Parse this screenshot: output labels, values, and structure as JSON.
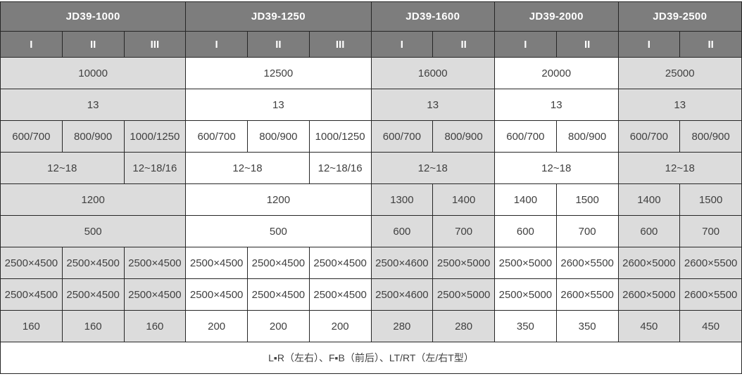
{
  "colors": {
    "header_bg": "#7d7d7d",
    "header_text": "#ffffff",
    "gray_cell": "#dcdcdc",
    "white_cell": "#ffffff",
    "border": "#262626",
    "body_text": "#404040"
  },
  "table": {
    "column_count": 12,
    "groups": [
      {
        "label": "JD39-1000",
        "cols": 3,
        "shade": "gray"
      },
      {
        "label": "JD39-1250",
        "cols": 3,
        "shade": "white"
      },
      {
        "label": "JD39-1600",
        "cols": 2,
        "shade": "gray"
      },
      {
        "label": "JD39-2000",
        "cols": 2,
        "shade": "white"
      },
      {
        "label": "JD39-2500",
        "cols": 2,
        "shade": "gray"
      }
    ],
    "subheaders": [
      "I",
      "II",
      "III",
      "I",
      "II",
      "III",
      "I",
      "II",
      "I",
      "II",
      "I",
      "II"
    ],
    "body_rows": [
      [
        {
          "text": "10000",
          "span": 3,
          "shade": "gray"
        },
        {
          "text": "12500",
          "span": 3,
          "shade": "white"
        },
        {
          "text": "16000",
          "span": 2,
          "shade": "gray"
        },
        {
          "text": "20000",
          "span": 2,
          "shade": "white"
        },
        {
          "text": "25000",
          "span": 2,
          "shade": "gray"
        }
      ],
      [
        {
          "text": "13",
          "span": 3,
          "shade": "gray"
        },
        {
          "text": "13",
          "span": 3,
          "shade": "white"
        },
        {
          "text": "13",
          "span": 2,
          "shade": "gray"
        },
        {
          "text": "13",
          "span": 2,
          "shade": "white"
        },
        {
          "text": "13",
          "span": 2,
          "shade": "gray"
        }
      ],
      [
        {
          "text": "600/700",
          "span": 1,
          "shade": "gray"
        },
        {
          "text": "800/900",
          "span": 1,
          "shade": "gray"
        },
        {
          "text": "1000/1250",
          "span": 1,
          "shade": "gray"
        },
        {
          "text": "600/700",
          "span": 1,
          "shade": "white"
        },
        {
          "text": "800/900",
          "span": 1,
          "shade": "white"
        },
        {
          "text": "1000/1250",
          "span": 1,
          "shade": "white"
        },
        {
          "text": "600/700",
          "span": 1,
          "shade": "gray"
        },
        {
          "text": "800/900",
          "span": 1,
          "shade": "gray"
        },
        {
          "text": "600/700",
          "span": 1,
          "shade": "white"
        },
        {
          "text": "800/900",
          "span": 1,
          "shade": "white"
        },
        {
          "text": "600/700",
          "span": 1,
          "shade": "gray"
        },
        {
          "text": "800/900",
          "span": 1,
          "shade": "gray"
        }
      ],
      [
        {
          "text": "12~18",
          "span": 2,
          "shade": "gray"
        },
        {
          "text": "12~18/16",
          "span": 1,
          "shade": "gray"
        },
        {
          "text": "12~18",
          "span": 2,
          "shade": "white"
        },
        {
          "text": "12~18/16",
          "span": 1,
          "shade": "white"
        },
        {
          "text": "12~18",
          "span": 2,
          "shade": "gray"
        },
        {
          "text": "12~18",
          "span": 2,
          "shade": "white"
        },
        {
          "text": "12~18",
          "span": 2,
          "shade": "gray"
        }
      ],
      [
        {
          "text": "1200",
          "span": 3,
          "shade": "gray"
        },
        {
          "text": "1200",
          "span": 3,
          "shade": "white"
        },
        {
          "text": "1300",
          "span": 1,
          "shade": "gray"
        },
        {
          "text": "1400",
          "span": 1,
          "shade": "gray"
        },
        {
          "text": "1400",
          "span": 1,
          "shade": "white"
        },
        {
          "text": "1500",
          "span": 1,
          "shade": "white"
        },
        {
          "text": "1400",
          "span": 1,
          "shade": "gray"
        },
        {
          "text": "1500",
          "span": 1,
          "shade": "gray"
        }
      ],
      [
        {
          "text": "500",
          "span": 3,
          "shade": "gray"
        },
        {
          "text": "500",
          "span": 3,
          "shade": "white"
        },
        {
          "text": "600",
          "span": 1,
          "shade": "gray"
        },
        {
          "text": "700",
          "span": 1,
          "shade": "gray"
        },
        {
          "text": "600",
          "span": 1,
          "shade": "white"
        },
        {
          "text": "700",
          "span": 1,
          "shade": "white"
        },
        {
          "text": "600",
          "span": 1,
          "shade": "gray"
        },
        {
          "text": "700",
          "span": 1,
          "shade": "gray"
        }
      ],
      [
        {
          "text": "2500×4500",
          "span": 1,
          "shade": "gray"
        },
        {
          "text": "2500×4500",
          "span": 1,
          "shade": "gray"
        },
        {
          "text": "2500×4500",
          "span": 1,
          "shade": "gray"
        },
        {
          "text": "2500×4500",
          "span": 1,
          "shade": "white"
        },
        {
          "text": "2500×4500",
          "span": 1,
          "shade": "white"
        },
        {
          "text": "2500×4500",
          "span": 1,
          "shade": "white"
        },
        {
          "text": "2500×4600",
          "span": 1,
          "shade": "gray"
        },
        {
          "text": "2500×5000",
          "span": 1,
          "shade": "gray"
        },
        {
          "text": "2500×5000",
          "span": 1,
          "shade": "white"
        },
        {
          "text": "2600×5500",
          "span": 1,
          "shade": "white"
        },
        {
          "text": "2600×5000",
          "span": 1,
          "shade": "gray"
        },
        {
          "text": "2600×5500",
          "span": 1,
          "shade": "gray"
        }
      ],
      [
        {
          "text": "2500×4500",
          "span": 1,
          "shade": "gray"
        },
        {
          "text": "2500×4500",
          "span": 1,
          "shade": "gray"
        },
        {
          "text": "2500×4500",
          "span": 1,
          "shade": "gray"
        },
        {
          "text": "2500×4500",
          "span": 1,
          "shade": "white"
        },
        {
          "text": "2500×4500",
          "span": 1,
          "shade": "white"
        },
        {
          "text": "2500×4500",
          "span": 1,
          "shade": "white"
        },
        {
          "text": "2500×4600",
          "span": 1,
          "shade": "gray"
        },
        {
          "text": "2500×5000",
          "span": 1,
          "shade": "gray"
        },
        {
          "text": "2500×5000",
          "span": 1,
          "shade": "white"
        },
        {
          "text": "2600×5500",
          "span": 1,
          "shade": "white"
        },
        {
          "text": "2600×5000",
          "span": 1,
          "shade": "gray"
        },
        {
          "text": "2600×5500",
          "span": 1,
          "shade": "gray"
        }
      ],
      [
        {
          "text": "160",
          "span": 1,
          "shade": "gray"
        },
        {
          "text": "160",
          "span": 1,
          "shade": "gray"
        },
        {
          "text": "160",
          "span": 1,
          "shade": "gray"
        },
        {
          "text": "200",
          "span": 1,
          "shade": "white"
        },
        {
          "text": "200",
          "span": 1,
          "shade": "white"
        },
        {
          "text": "200",
          "span": 1,
          "shade": "white"
        },
        {
          "text": "280",
          "span": 1,
          "shade": "gray"
        },
        {
          "text": "280",
          "span": 1,
          "shade": "gray"
        },
        {
          "text": "350",
          "span": 1,
          "shade": "white"
        },
        {
          "text": "350",
          "span": 1,
          "shade": "white"
        },
        {
          "text": "450",
          "span": 1,
          "shade": "gray"
        },
        {
          "text": "450",
          "span": 1,
          "shade": "gray"
        }
      ]
    ],
    "footer": {
      "text": "L▪R（左右）、F▪B（前后）、LT/RT（左/右T型）",
      "span": 12
    }
  }
}
